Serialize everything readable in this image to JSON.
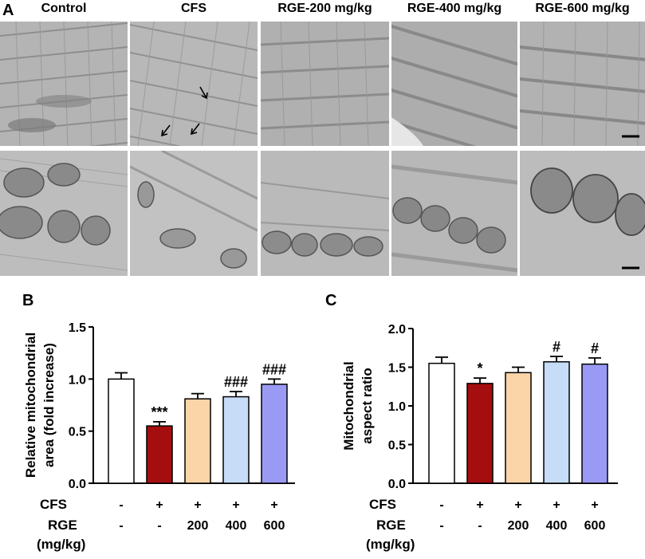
{
  "panel_a": {
    "letter": "A",
    "columns": [
      "Control",
      "CFS",
      "RGE-200 mg/kg",
      "RGE-400 mg/kg",
      "RGE-600 mg/kg"
    ]
  },
  "colors": {
    "control": "#ffffff",
    "cfs": "#a50e0e",
    "rge200": "#fbd4a8",
    "rge400": "#c6dcf7",
    "rge600": "#9a9af5",
    "axis": "#000000"
  },
  "treatment_table": {
    "row1_label": "CFS",
    "row1_values": [
      "-",
      "+",
      "+",
      "+",
      "+"
    ],
    "row2_label_line1": "RGE",
    "row2_label_line2": "(mg/kg)",
    "row2_values": [
      "-",
      "-",
      "200",
      "400",
      "600"
    ]
  },
  "chart_data": [
    {
      "panel": "B",
      "type": "bar",
      "ylabel_line1": "Relative mitochondrial",
      "ylabel_line2": "area (fold increase)",
      "ylim": [
        0,
        1.5
      ],
      "yticks": [
        "0.0",
        "0.5",
        "1.0",
        "1.5"
      ],
      "ytick_values": [
        0,
        0.5,
        1.0,
        1.5
      ],
      "values": [
        1.0,
        0.55,
        0.81,
        0.83,
        0.95
      ],
      "errors": [
        0.06,
        0.04,
        0.05,
        0.05,
        0.05
      ],
      "annotations": [
        "",
        "***",
        "",
        "###",
        "###"
      ]
    },
    {
      "panel": "C",
      "type": "bar",
      "ylabel_line1": "Mitochondrial",
      "ylabel_line2": "aspect ratio",
      "ylim": [
        0,
        2.0
      ],
      "yticks": [
        "0.0",
        "0.5",
        "1.0",
        "1.5",
        "2.0"
      ],
      "ytick_values": [
        0,
        0.5,
        1.0,
        1.5,
        2.0
      ],
      "values": [
        1.55,
        1.29,
        1.43,
        1.57,
        1.54
      ],
      "errors": [
        0.08,
        0.07,
        0.07,
        0.07,
        0.08
      ],
      "annotations": [
        "",
        "*",
        "",
        "#",
        "#"
      ]
    }
  ]
}
